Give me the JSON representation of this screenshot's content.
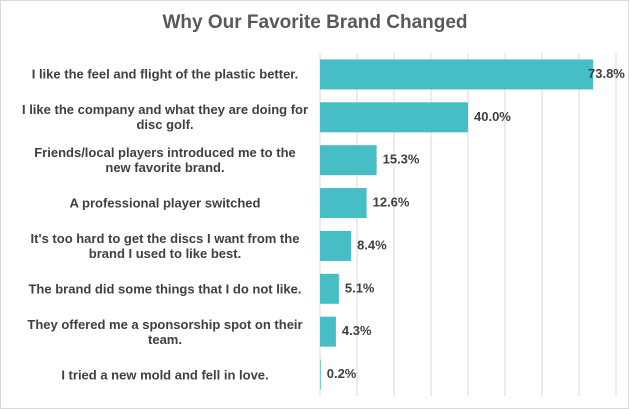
{
  "chart_data": {
    "type": "barh",
    "title": "Why Our Favorite Brand Changed",
    "categories": [
      "I like the feel and flight of the plastic better.",
      "I like the company and what they are doing for disc golf.",
      "Friends/local players introduced me to the new favorite brand.",
      "A professional player switched",
      "It's too hard to get the discs I want from the brand I used to like best.",
      "The brand did some things that I do not like.",
      "They offered me a sponsorship spot on their team.",
      "I tried a new mold and fell in love."
    ],
    "values": [
      73.8,
      40.0,
      15.3,
      12.6,
      8.4,
      5.1,
      4.3,
      0.2
    ],
    "value_labels": [
      "73.8%",
      "40.0%",
      "15.3%",
      "12.6%",
      "8.4%",
      "5.1%",
      "4.3%",
      "0.2%"
    ],
    "color": "#47bec6",
    "xlim": [
      0,
      80
    ],
    "xticks": [
      0,
      10,
      20,
      30,
      40,
      50,
      60,
      70,
      80
    ],
    "grid": true
  }
}
